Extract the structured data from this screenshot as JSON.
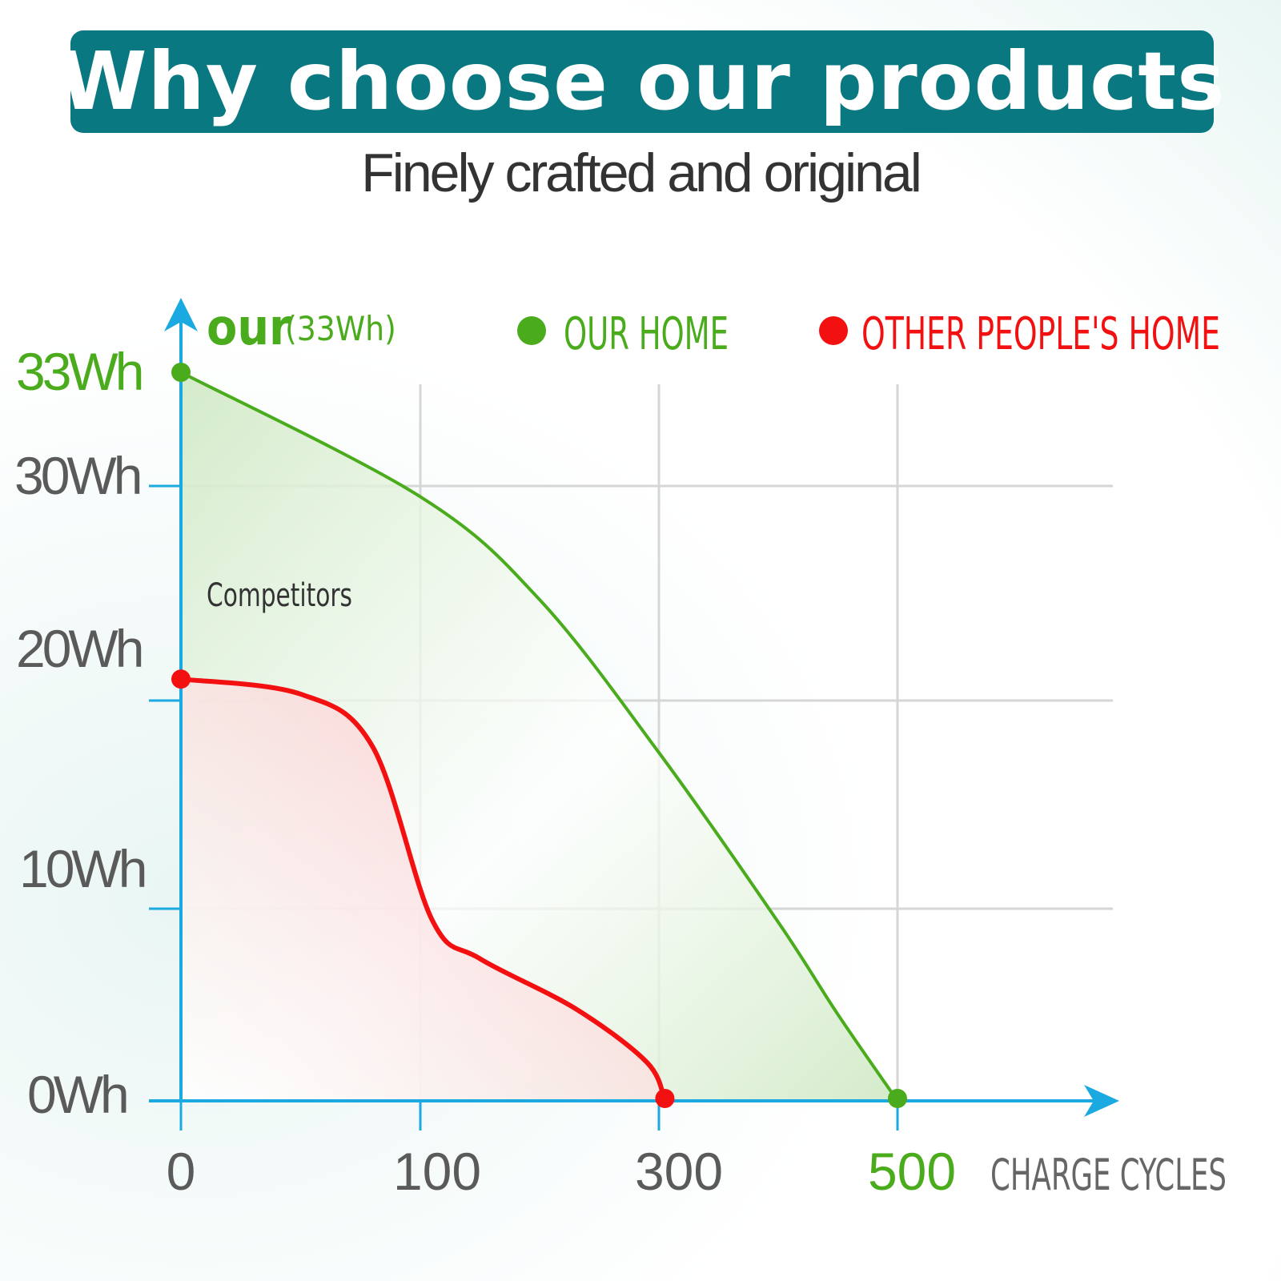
{
  "header": {
    "title": "Why choose our products",
    "subtitle": "Finely crafted and original"
  },
  "chart_data": {
    "type": "area",
    "axis_annotation_main": "our",
    "axis_annotation_sub": "(33Wh)",
    "series_annotation": "Competitors",
    "xlabel": "CHARGE CYCLES",
    "y_ticks": [
      {
        "label": "33Wh",
        "value": 33
      },
      {
        "label": "30Wh",
        "value": 30
      },
      {
        "label": "20Wh",
        "value": 20
      },
      {
        "label": "10Wh",
        "value": 10
      },
      {
        "label": "0Wh",
        "value": 0
      }
    ],
    "x_ticks": [
      {
        "label": "0",
        "value": 0
      },
      {
        "label": "100",
        "value": 100
      },
      {
        "label": "300",
        "value": 300
      },
      {
        "label": "500",
        "value": 500
      }
    ],
    "legend_position": "top",
    "series": [
      {
        "name": "OUR HOME",
        "color": "#4aab1d",
        "fill": "#cfe9c4",
        "points": [
          [
            0,
            33
          ],
          [
            100,
            29.5
          ],
          [
            200,
            24.7
          ],
          [
            300,
            17.5
          ],
          [
            400,
            9.3
          ],
          [
            450,
            4.5
          ],
          [
            500,
            0
          ]
        ]
      },
      {
        "name": "OTHER PEOPLE'S HOME",
        "color": "#f21010",
        "fill": "#fbd3d4",
        "points": [
          [
            0,
            21
          ],
          [
            50,
            20.3
          ],
          [
            80,
            17.8
          ],
          [
            110,
            9.4
          ],
          [
            150,
            7.4
          ],
          [
            230,
            4.8
          ],
          [
            290,
            2
          ],
          [
            305,
            0
          ]
        ]
      }
    ]
  }
}
